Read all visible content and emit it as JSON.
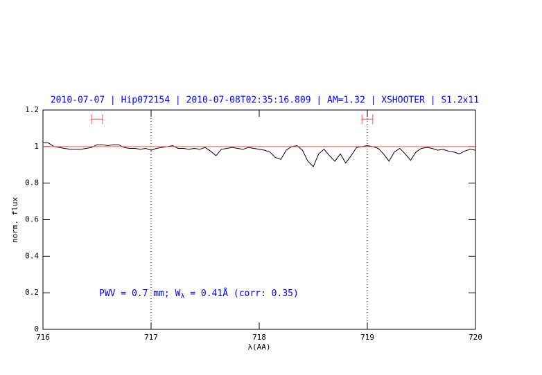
{
  "chart_data": {
    "type": "line",
    "title": "2010-07-07 | Hip072154 | 2010-07-08T02:35:16.809 | AM=1.32 | XSHOOTER | S1.2x11",
    "xlabel": "λ(AA)",
    "ylabel": "norm. flux",
    "annotation": [
      "PWV = 0.7 mm; W",
      "λ",
      " = 0.41Å (corr: 0.35)"
    ],
    "xlim": [
      716,
      720
    ],
    "xticks": [
      716,
      717,
      718,
      719,
      720
    ],
    "ylim": [
      0,
      1.2
    ],
    "yticks": [
      0,
      0.2,
      0.4,
      0.6,
      0.8,
      1,
      1.2
    ],
    "vlines": [
      717,
      719
    ],
    "ranges": [
      [
        716.45,
        716.55
      ],
      [
        718.95,
        719.05
      ]
    ],
    "ranges_y": 1.15,
    "ranges_color": "#ff5050",
    "series": [
      {
        "color": "#000000",
        "x": [
          716,
          716.05,
          716.1,
          716.15,
          716.2,
          716.25,
          716.3,
          716.35,
          716.4,
          716.45,
          716.5,
          716.55,
          716.6,
          716.65,
          716.7,
          716.75,
          716.8,
          716.85,
          716.9,
          716.95,
          717,
          717.05,
          717.1,
          717.15,
          717.2,
          717.25,
          717.3,
          717.35,
          717.4,
          717.45,
          717.5,
          717.55,
          717.6,
          717.65,
          717.7,
          717.75,
          717.8,
          717.85,
          717.9,
          717.95,
          718,
          718.05,
          718.1,
          718.15,
          718.2,
          718.25,
          718.3,
          718.35,
          718.4,
          718.45,
          718.5,
          718.55,
          718.6,
          718.65,
          718.7,
          718.75,
          718.8,
          718.85,
          718.9,
          718.95,
          719,
          719.05,
          719.1,
          719.15,
          719.2,
          719.25,
          719.3,
          719.35,
          719.4,
          719.45,
          719.5,
          719.55,
          719.6,
          719.65,
          719.7,
          719.75,
          719.8,
          719.85,
          719.9,
          719.95,
          720
        ],
        "values": [
          1.02,
          1.02,
          1.0,
          0.995,
          0.99,
          0.985,
          0.985,
          0.985,
          0.99,
          0.995,
          1.01,
          1.01,
          1.005,
          1.01,
          1.01,
          0.995,
          0.99,
          0.99,
          0.985,
          0.99,
          0.98,
          0.99,
          0.995,
          1.0,
          1.005,
          0.99,
          0.99,
          0.985,
          0.99,
          0.985,
          0.995,
          0.975,
          0.95,
          0.985,
          0.99,
          0.995,
          0.99,
          0.985,
          0.995,
          0.99,
          0.985,
          0.98,
          0.97,
          0.94,
          0.93,
          0.98,
          1.0,
          1.005,
          0.98,
          0.92,
          0.89,
          0.96,
          0.985,
          0.95,
          0.92,
          0.96,
          0.91,
          0.95,
          0.995,
          1.0,
          1.005,
          1.0,
          0.99,
          0.96,
          0.92,
          0.97,
          0.99,
          0.96,
          0.925,
          0.97,
          0.99,
          0.995,
          0.99,
          0.98,
          0.985,
          0.975,
          0.97,
          0.96,
          0.975,
          0.985,
          0.98
        ]
      },
      {
        "color": "#ff5050",
        "x": [
          716,
          720
        ],
        "values": [
          1,
          1
        ]
      }
    ]
  }
}
